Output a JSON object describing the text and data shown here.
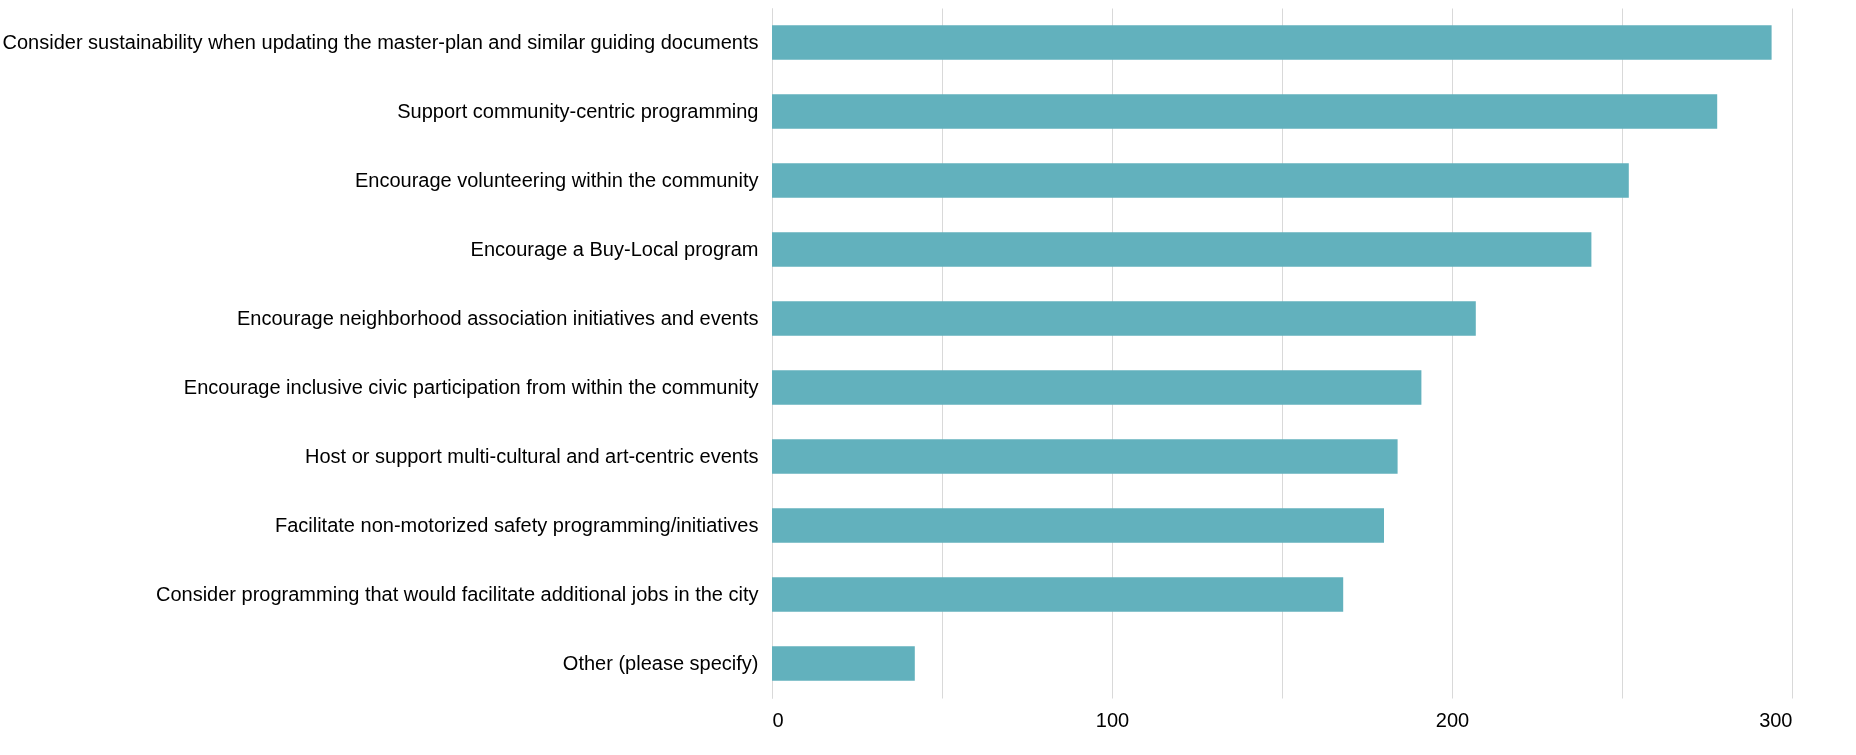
{
  "chart_data": {
    "type": "bar",
    "orientation": "horizontal",
    "categories": [
      "Consider sustainability when updating the master-plan and similar guiding documents",
      "Support community-centric programming",
      "Encourage volunteering within the community",
      "Encourage a Buy-Local program",
      "Encourage neighborhood association initiatives and events",
      "Encourage inclusive civic participation from within the community",
      "Host or support multi-cultural and art-centric events",
      "Facilitate non-motorized safety programming/initiatives",
      "Consider programming that would facilitate additional jobs in the city",
      "Other (please specify)"
    ],
    "values": [
      294,
      278,
      252,
      241,
      207,
      191,
      184,
      180,
      168,
      42
    ],
    "color": "#62b1bd",
    "xlim": [
      0,
      300
    ],
    "xticks": [
      0,
      {
        "value": 50,
        "label": null
      },
      100,
      {
        "value": 150,
        "label": null
      },
      200,
      {
        "value": 250,
        "label": null
      },
      300
    ],
    "grid": "x"
  }
}
